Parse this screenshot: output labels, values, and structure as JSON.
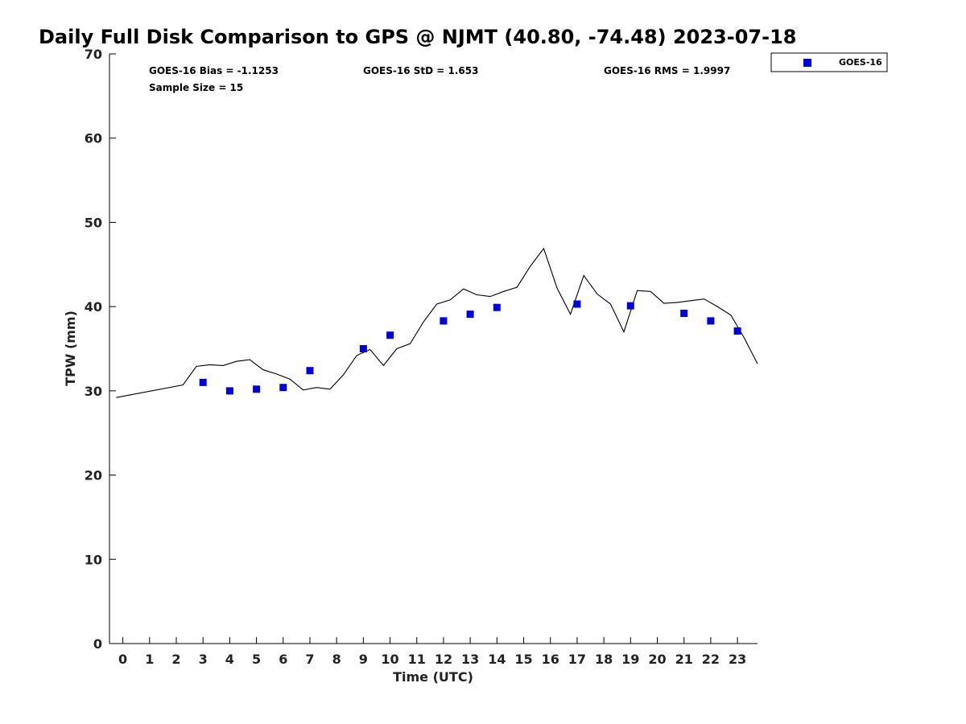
{
  "chart_data": {
    "type": "line",
    "title": "Daily Full Disk Comparison to GPS @ NJMT (40.80, -74.48) 2023-07-18",
    "xlabel": "Time (UTC)",
    "ylabel": "TPW (mm)",
    "xlim": [
      -0.5,
      23.75
    ],
    "ylim": [
      0,
      70
    ],
    "xticks": [
      0,
      1,
      2,
      3,
      4,
      5,
      6,
      7,
      8,
      9,
      10,
      11,
      12,
      13,
      14,
      15,
      16,
      17,
      18,
      19,
      20,
      21,
      22,
      23
    ],
    "yticks": [
      0,
      10,
      20,
      30,
      40,
      50,
      60,
      70
    ],
    "grid": false,
    "legend_position": "outside-top-right",
    "stats": {
      "bias": "GOES-16 Bias = -1.1253",
      "std": "GOES-16 StD = 1.653",
      "rms": "GOES-16 RMS = 1.9997",
      "sample_size": "Sample Size = 15"
    },
    "series": [
      {
        "type": "line",
        "color": "#000000",
        "x": [
          -0.25,
          2.25,
          2.75,
          3.25,
          3.75,
          4.25,
          4.75,
          5.25,
          5.75,
          6.25,
          6.75,
          7.25,
          7.75,
          8.25,
          8.75,
          9.25,
          9.75,
          10.25,
          10.75,
          11.25,
          11.75,
          12.25,
          12.75,
          13.25,
          13.75,
          14.25,
          14.75,
          15.25,
          15.75,
          16.25,
          16.75,
          17.25,
          17.75,
          18.25,
          18.75,
          19.25,
          19.75,
          20.25,
          20.75,
          21.25,
          21.75,
          22.25,
          22.75,
          23.25,
          23.75
        ],
        "y": [
          29.2,
          30.7,
          32.9,
          33.1,
          33.0,
          33.5,
          33.7,
          32.5,
          32.0,
          31.4,
          30.1,
          30.4,
          30.2,
          31.9,
          34.2,
          34.9,
          33.0,
          35.0,
          35.6,
          38.2,
          40.3,
          40.8,
          42.1,
          41.4,
          41.2,
          41.8,
          42.3,
          44.8,
          46.9,
          42.2,
          39.1,
          43.7,
          41.5,
          40.3,
          37.0,
          41.9,
          41.8,
          40.4,
          40.5,
          40.7,
          40.9,
          40.0,
          39.0,
          36.3,
          33.2
        ]
      },
      {
        "name": "GOES-16",
        "type": "scatter",
        "color": "#0000dd",
        "marker": "square",
        "x": [
          3,
          4,
          5,
          6,
          7,
          9,
          10,
          12,
          13,
          14,
          17,
          19,
          21,
          22,
          23
        ],
        "y": [
          31.0,
          30.0,
          30.2,
          30.4,
          32.4,
          35.0,
          36.6,
          38.3,
          39.1,
          39.9,
          40.3,
          40.1,
          39.2,
          38.3,
          37.1
        ]
      }
    ]
  }
}
